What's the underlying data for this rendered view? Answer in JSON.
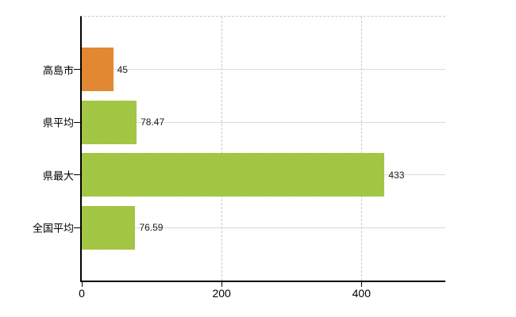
{
  "chart_data": {
    "type": "bar",
    "orientation": "horizontal",
    "title": "",
    "xlabel": "",
    "ylabel": "",
    "categories": [
      "高島市",
      "県平均",
      "県最大",
      "全国平均"
    ],
    "values": [
      45,
      78.47,
      433,
      76.59
    ],
    "value_labels": [
      "45",
      "78.47",
      "433",
      "76.59"
    ],
    "bar_colors": [
      "#e67f1d",
      "#9dc631",
      "#9dc631",
      "#9dc631"
    ],
    "xlim": [
      0,
      520
    ],
    "x_ticks": [
      0,
      200,
      400
    ],
    "x_tick_labels": [
      "0",
      "200",
      "400"
    ],
    "grid": true,
    "legend": "none",
    "colors": {
      "accent_orange": "#e67f1d",
      "accent_green": "#9dc631",
      "axis": "#000000",
      "grid_horizontal": "#d8ddd8",
      "grid_vertical": "#c9c9c9",
      "plot_top_border": "#cdcdcd",
      "background": "#ffffff"
    }
  }
}
